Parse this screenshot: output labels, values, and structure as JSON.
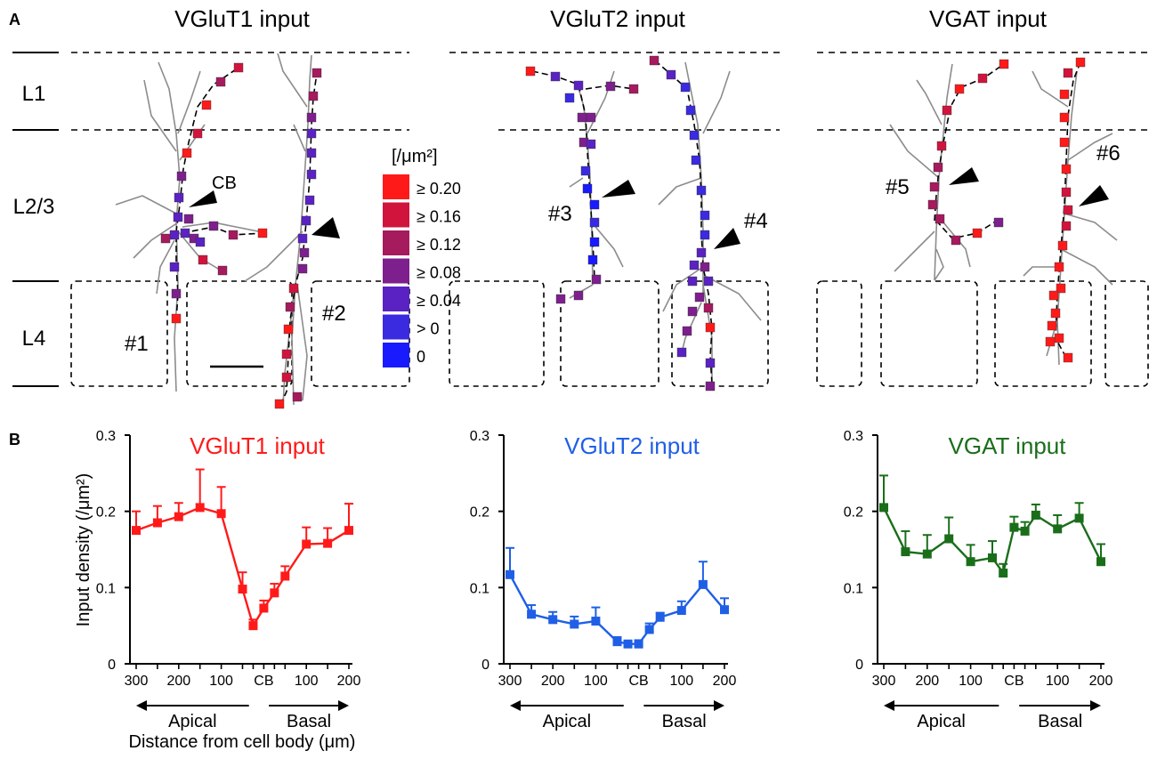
{
  "panelA": {
    "label": "A",
    "titles": [
      "VGluT1 input",
      "VGluT2 input",
      "VGAT input"
    ],
    "layers": [
      "L1",
      "L2/3",
      "L4"
    ],
    "cell_body_label": "CB",
    "neuron_labels": [
      "#1",
      "#2",
      "#3",
      "#4",
      "#5",
      "#6"
    ],
    "legend": {
      "unit": "[/μm²]",
      "entries": [
        {
          "label": "≥ 0.20",
          "color": "#ff1a1a"
        },
        {
          "label": "≥ 0.16",
          "color": "#d1143c"
        },
        {
          "label": "≥ 0.12",
          "color": "#a61a5e"
        },
        {
          "label": "≥ 0.08",
          "color": "#7d1f8c"
        },
        {
          "label": "≥ 0.04",
          "color": "#5a22c2"
        },
        {
          "label": "> 0",
          "color": "#3a2ae0"
        },
        {
          "label": "0",
          "color": "#1a1aff"
        }
      ]
    }
  },
  "panelB": {
    "label": "B",
    "ylabel": "Input density (/μm²)",
    "xlabel": "Distance from cell body (μm)",
    "apical_label": "Apical",
    "basal_label": "Basal"
  },
  "chart_data": [
    {
      "type": "line",
      "title": "VGluT1 input",
      "color": "#ff1a1a",
      "ylabel": "Input density (/μm²)",
      "xlabel": "Distance from cell body (μm)",
      "ylim": [
        0,
        0.3
      ],
      "yticks": [
        "0",
        "0.1",
        "0.2",
        "0.3"
      ],
      "xticks": [
        "300",
        "200",
        "100",
        "CB",
        "100",
        "200"
      ],
      "x": [
        -300,
        -250,
        -200,
        -150,
        -100,
        -50,
        -25,
        0,
        25,
        50,
        100,
        150,
        200
      ],
      "values": [
        0.175,
        0.185,
        0.193,
        0.205,
        0.197,
        0.098,
        0.05,
        0.073,
        0.093,
        0.115,
        0.157,
        0.158,
        0.175
      ],
      "errors": [
        0.025,
        0.022,
        0.018,
        0.05,
        0.035,
        0.022,
        0.008,
        0.01,
        0.012,
        0.013,
        0.022,
        0.02,
        0.035
      ]
    },
    {
      "type": "line",
      "title": "VGluT2 input",
      "color": "#1f5fe6",
      "ylim": [
        0,
        0.3
      ],
      "yticks": [
        "0",
        "0.1",
        "0.2",
        "0.3"
      ],
      "xticks": [
        "300",
        "200",
        "100",
        "CB",
        "100",
        "200"
      ],
      "x": [
        -300,
        -250,
        -200,
        -150,
        -100,
        -50,
        -25,
        0,
        25,
        50,
        100,
        150,
        200
      ],
      "values": [
        0.117,
        0.065,
        0.058,
        0.052,
        0.056,
        0.029,
        0.026,
        0.026,
        0.045,
        0.061,
        0.07,
        0.104,
        0.071
      ],
      "errors": [
        0.035,
        0.012,
        0.01,
        0.01,
        0.018,
        0.006,
        0.004,
        0.005,
        0.008,
        0.006,
        0.012,
        0.03,
        0.015
      ]
    },
    {
      "type": "line",
      "title": "VGAT input",
      "color": "#1a6e1a",
      "ylim": [
        0,
        0.3
      ],
      "yticks": [
        "0",
        "0.1",
        "0.2",
        "0.3"
      ],
      "xticks": [
        "300",
        "200",
        "100",
        "CB",
        "100",
        "200"
      ],
      "x": [
        -300,
        -250,
        -200,
        -150,
        -100,
        -50,
        -25,
        0,
        25,
        50,
        100,
        150,
        200
      ],
      "values": [
        0.205,
        0.147,
        0.144,
        0.164,
        0.134,
        0.139,
        0.119,
        0.179,
        0.174,
        0.195,
        0.177,
        0.191,
        0.134
      ],
      "errors": [
        0.042,
        0.027,
        0.025,
        0.028,
        0.022,
        0.022,
        0.012,
        0.014,
        0.012,
        0.014,
        0.018,
        0.02,
        0.023
      ]
    }
  ]
}
